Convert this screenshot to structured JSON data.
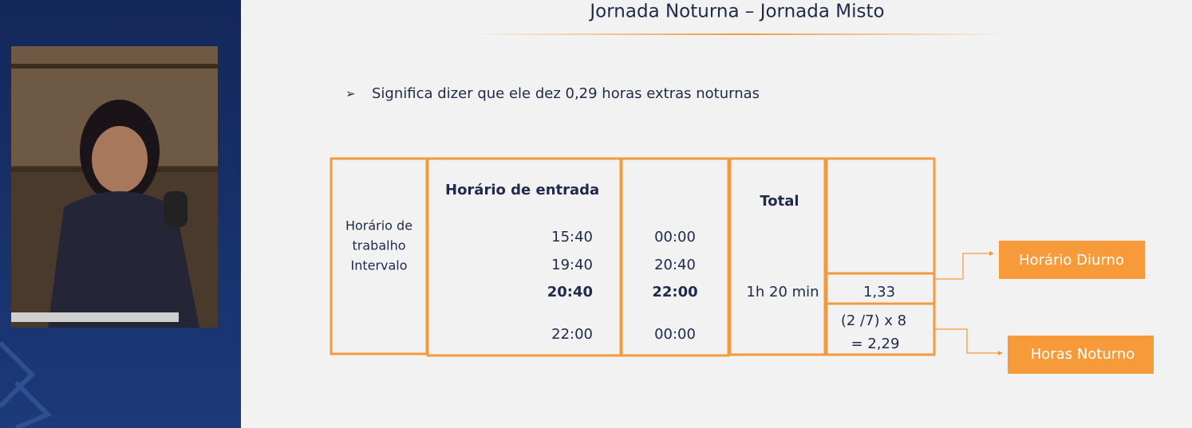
{
  "slide": {
    "title": "Jornada Noturna – Jornada Misto",
    "bullet": "Significa dizer que ele dez 0,29 horas extras noturnas",
    "table": {
      "labels": [
        "Horário de",
        "trabalho",
        "Intervalo"
      ],
      "entry_header": "Horário de entrada",
      "entry_times": [
        "15:40",
        "19:40",
        "20:40",
        "22:00"
      ],
      "exit_times": [
        "00:00",
        "20:40",
        "22:00",
        "00:00"
      ],
      "total_header": "Total",
      "total": "1h 20 min",
      "diurno_value": "1,33",
      "noturno_formula": [
        "(2 /7) x 8",
        "= 2,29"
      ]
    },
    "callouts": [
      "Horário Diurno",
      "Horas Noturno"
    ]
  }
}
